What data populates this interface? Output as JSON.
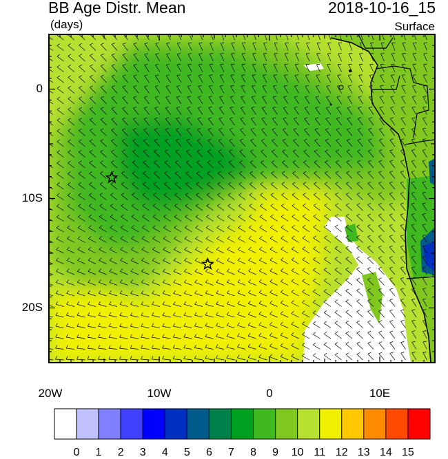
{
  "header": {
    "title": "BB Age Distr. Mean",
    "datetime": "2018-10-16_15",
    "units": "(days)",
    "level": "Surface"
  },
  "map": {
    "lon_range": [
      -20,
      15
    ],
    "lat_range": [
      -25,
      5
    ],
    "x_ticks": [
      {
        "lon": -20,
        "label": "20W"
      },
      {
        "lon": -10,
        "label": "10W"
      },
      {
        "lon": 0,
        "label": "0"
      },
      {
        "lon": 10,
        "label": "10E"
      }
    ],
    "y_ticks": [
      {
        "lat": 0,
        "label": "0"
      },
      {
        "lat": -10,
        "label": "10S"
      },
      {
        "lat": -20,
        "label": "20S"
      }
    ],
    "markers": [
      {
        "name": "star-marker",
        "lon": -14.3,
        "lat": -8.1
      },
      {
        "name": "star-marker",
        "lon": -5.6,
        "lat": -16.0
      }
    ]
  },
  "colorbar": {
    "colors": [
      "#ffffff",
      "#c1c1ff",
      "#8080ff",
      "#4040ff",
      "#0000ff",
      "#0030c0",
      "#005a8a",
      "#00804a",
      "#00a020",
      "#40b820",
      "#80c820",
      "#b8e030",
      "#f0f000",
      "#ffc800",
      "#ff8c00",
      "#ff4a00",
      "#ff0000"
    ],
    "labels": [
      "0",
      "1",
      "2",
      "3",
      "4",
      "5",
      "6",
      "7",
      "8",
      "9",
      "10",
      "11",
      "12",
      "13",
      "14",
      "15"
    ]
  }
}
